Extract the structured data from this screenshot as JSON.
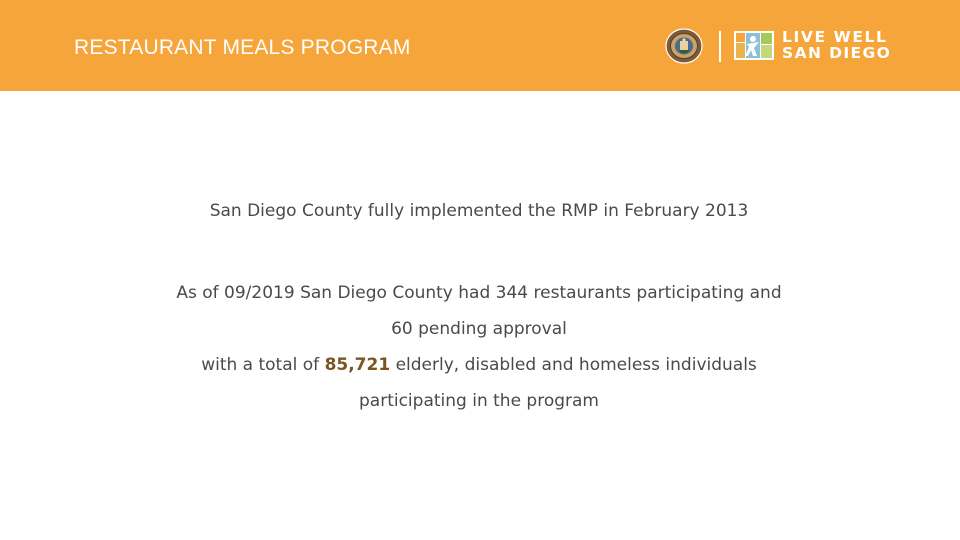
{
  "header": {
    "title": "RESTAURANT MEALS PROGRAM",
    "logo_line1": "LIVE WELL",
    "logo_line2": "SAN DIEGO",
    "band_color": "#f6a53a"
  },
  "content": {
    "line1": "San Diego County fully implemented the RMP in February 2013",
    "line2": "As of 09/2019 San Diego County had 344 restaurants participating and",
    "line3": "60 pending approval",
    "line4_pre": "with  a total of ",
    "line4_number": "85,721",
    "line4_post": " elderly, disabled and homeless individuals",
    "line5": "participating in the program"
  },
  "icons": {
    "seal": "county-seal-icon",
    "logo_mark": "live-well-logo-icon"
  }
}
